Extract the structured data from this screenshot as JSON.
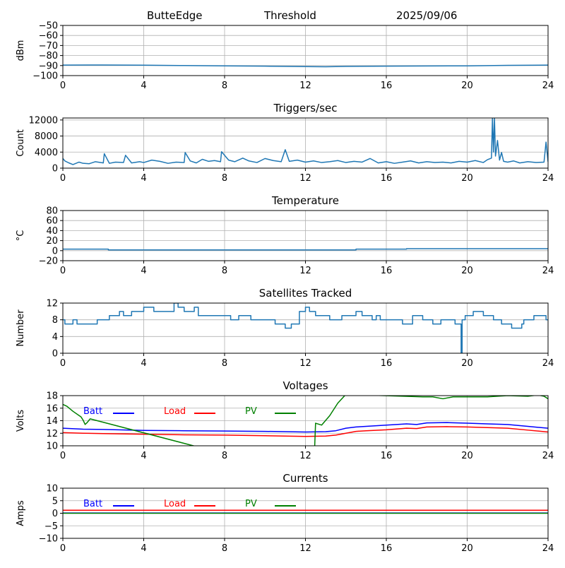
{
  "header": {
    "station": "ButteEdge",
    "mode": "Threshold",
    "date": "2025/09/06"
  },
  "colors": {
    "series": "#1f77b4",
    "grid": "#b0b0b0",
    "batt": "#0000ff",
    "load": "#ff0000",
    "pv": "#008000"
  },
  "chart_data": [
    {
      "type": "line",
      "title": "",
      "ylabel": "dBm",
      "xlim": [
        0,
        24
      ],
      "ylim": [
        -100,
        -50
      ],
      "xticks": [
        0,
        4,
        8,
        12,
        16,
        20,
        24
      ],
      "yticks": [
        -100,
        -90,
        -80,
        -70,
        -60,
        -50
      ],
      "series": [
        {
          "x": [
            0,
            2,
            4,
            6,
            8,
            10,
            12,
            13,
            14,
            16,
            18,
            20,
            22,
            24
          ],
          "y": [
            -89.5,
            -89.4,
            -89.6,
            -90.0,
            -90.3,
            -90.6,
            -91.0,
            -91.2,
            -90.8,
            -90.6,
            -90.4,
            -90.3,
            -89.8,
            -89.5
          ]
        }
      ]
    },
    {
      "type": "line",
      "title": "Triggers/sec",
      "ylabel": "Count",
      "xlim": [
        0,
        24
      ],
      "ylim": [
        0,
        12500
      ],
      "xticks": [
        0,
        4,
        8,
        12,
        16,
        20,
        24
      ],
      "yticks": [
        0,
        4000,
        8000,
        12000
      ],
      "series": [
        {
          "x": [
            0,
            0.1,
            0.3,
            0.5,
            0.8,
            1.0,
            1.3,
            1.6,
            2.0,
            2.05,
            2.3,
            2.6,
            3.0,
            3.1,
            3.4,
            3.8,
            4.0,
            4.4,
            4.8,
            5.2,
            5.6,
            6.0,
            6.05,
            6.3,
            6.6,
            6.9,
            7.2,
            7.5,
            7.8,
            7.85,
            8.2,
            8.5,
            8.9,
            9.2,
            9.6,
            10.0,
            10.4,
            10.8,
            11.0,
            11.2,
            11.6,
            12.0,
            12.4,
            12.8,
            13.2,
            13.6,
            14.0,
            14.4,
            14.8,
            15.2,
            15.6,
            16.0,
            16.4,
            16.8,
            17.2,
            17.6,
            18.0,
            18.4,
            18.8,
            19.2,
            19.6,
            20.0,
            20.4,
            20.8,
            21.0,
            21.2,
            21.25,
            21.3,
            21.35,
            21.4,
            21.5,
            21.6,
            21.7,
            21.8,
            22.0,
            22.3,
            22.6,
            23.0,
            23.4,
            23.8,
            23.9,
            24.0
          ],
          "y": [
            2400,
            1800,
            1300,
            900,
            1500,
            1200,
            1100,
            1600,
            1300,
            3600,
            1200,
            1500,
            1400,
            3200,
            1300,
            1600,
            1400,
            2000,
            1700,
            1200,
            1500,
            1400,
            3900,
            1800,
            1300,
            2200,
            1700,
            1900,
            1600,
            4100,
            2000,
            1600,
            2500,
            1800,
            1400,
            2400,
            1900,
            1600,
            4600,
            1700,
            2000,
            1500,
            1800,
            1400,
            1600,
            1900,
            1400,
            1700,
            1500,
            2400,
            1300,
            1600,
            1200,
            1500,
            1800,
            1300,
            1600,
            1400,
            1500,
            1300,
            1700,
            1500,
            1900,
            1400,
            2100,
            2500,
            12500,
            4000,
            12500,
            3000,
            6900,
            2000,
            3900,
            1700,
            1500,
            1800,
            1300,
            1600,
            1400,
            1500,
            6500,
            1600
          ]
        }
      ]
    },
    {
      "type": "line",
      "title": "Temperature",
      "ylabel": "°C",
      "xlim": [
        0,
        24
      ],
      "ylim": [
        -20,
        80
      ],
      "xticks": [
        0,
        4,
        8,
        12,
        16,
        20,
        24
      ],
      "yticks": [
        -20,
        0,
        20,
        40,
        60,
        80
      ],
      "series": [
        {
          "x": [
            0,
            2.25,
            2.25,
            14.5,
            14.5,
            17,
            17,
            24
          ],
          "y": [
            3,
            3,
            1.5,
            1.5,
            3,
            3,
            4,
            4
          ]
        }
      ]
    },
    {
      "type": "line",
      "title": "Satellites Tracked",
      "ylabel": "Number",
      "xlim": [
        0,
        24
      ],
      "ylim": [
        0,
        12
      ],
      "xticks": [
        0,
        4,
        8,
        12,
        16,
        20,
        24
      ],
      "yticks": [
        0,
        4,
        8,
        12
      ],
      "series": [
        {
          "x": [
            0,
            0.1,
            0.1,
            0.5,
            0.5,
            0.7,
            0.7,
            1.7,
            1.7,
            2.3,
            2.3,
            2.8,
            2.8,
            3.0,
            3.0,
            3.4,
            3.4,
            3.6,
            3.6,
            4.0,
            4.0,
            4.5,
            4.5,
            5.5,
            5.5,
            5.7,
            5.7,
            6.0,
            6.0,
            6.5,
            6.5,
            6.7,
            6.7,
            8.3,
            8.3,
            8.7,
            8.7,
            9.3,
            9.3,
            10.0,
            10.0,
            10.5,
            10.5,
            11.0,
            11.0,
            11.3,
            11.3,
            11.7,
            11.7,
            12.0,
            12.0,
            12.2,
            12.2,
            12.5,
            12.5,
            13.2,
            13.2,
            13.8,
            13.8,
            14.5,
            14.5,
            14.8,
            14.8,
            15.3,
            15.3,
            15.5,
            15.5,
            15.7,
            15.7,
            16.0,
            16.0,
            16.8,
            16.8,
            17.3,
            17.3,
            17.8,
            17.8,
            18.3,
            18.3,
            18.7,
            18.7,
            19.4,
            19.4,
            19.7,
            19.7,
            19.75,
            19.75,
            19.9,
            19.9,
            20.3,
            20.3,
            20.8,
            20.8,
            21.3,
            21.3,
            21.7,
            21.7,
            22.2,
            22.2,
            22.7,
            22.7,
            22.8,
            22.8,
            23.3,
            23.3,
            23.9,
            23.9,
            24.0
          ],
          "y": [
            8,
            8,
            7,
            7,
            8,
            8,
            7,
            7,
            8,
            8,
            9,
            9,
            10,
            10,
            9,
            9,
            10,
            10,
            10,
            10,
            11,
            11,
            10,
            10,
            12,
            12,
            11,
            11,
            10,
            10,
            11,
            11,
            9,
            9,
            8,
            8,
            9,
            9,
            8,
            8,
            8,
            8,
            7,
            7,
            6,
            6,
            7,
            7,
            10,
            10,
            11,
            11,
            10,
            10,
            9,
            9,
            8,
            8,
            9,
            9,
            10,
            10,
            9,
            9,
            8,
            8,
            9,
            9,
            8,
            8,
            8,
            8,
            7,
            7,
            9,
            9,
            8,
            8,
            7,
            7,
            8,
            8,
            7,
            7,
            0,
            0,
            8,
            8,
            9,
            9,
            10,
            10,
            9,
            9,
            8,
            8,
            7,
            7,
            6,
            6,
            7,
            7,
            8,
            8,
            9,
            9,
            8,
            8
          ]
        }
      ]
    },
    {
      "type": "line",
      "title": "Voltages",
      "ylabel": "Volts",
      "xlim": [
        0,
        24
      ],
      "ylim": [
        10,
        18
      ],
      "xticks": [
        0,
        4,
        8,
        12,
        16,
        20,
        24
      ],
      "yticks": [
        10,
        12,
        14,
        16,
        18
      ],
      "legend": "top-left",
      "series": [
        {
          "name": "Batt",
          "color": "#0000ff",
          "x": [
            0,
            1,
            2,
            4,
            6,
            8,
            10,
            12,
            13,
            13.5,
            14,
            14.5,
            15,
            16,
            17,
            17.5,
            18,
            19,
            20,
            21,
            22,
            23,
            24
          ],
          "y": [
            12.8,
            12.65,
            12.6,
            12.45,
            12.4,
            12.35,
            12.3,
            12.2,
            12.25,
            12.4,
            12.8,
            13.0,
            13.1,
            13.3,
            13.5,
            13.4,
            13.65,
            13.7,
            13.6,
            13.5,
            13.4,
            13.1,
            12.8
          ]
        },
        {
          "name": "Load",
          "color": "#ff0000",
          "x": [
            0,
            1,
            2,
            4,
            6,
            8,
            10,
            12,
            13,
            13.5,
            14,
            14.5,
            15,
            16,
            17,
            17.5,
            18,
            19,
            20,
            21,
            22,
            23,
            24
          ],
          "y": [
            12.1,
            12.0,
            11.95,
            11.85,
            11.75,
            11.7,
            11.6,
            11.5,
            11.55,
            11.7,
            12.0,
            12.3,
            12.4,
            12.55,
            12.8,
            12.75,
            13.0,
            13.05,
            13.0,
            12.9,
            12.8,
            12.5,
            12.2
          ]
        },
        {
          "name": "PV",
          "color": "#008000",
          "x": [
            0,
            0.2,
            0.5,
            0.9,
            1.0,
            1.1,
            1.2,
            1.35,
            12.4,
            12.5,
            12.8,
            13.2,
            13.6,
            14.0,
            17.8,
            18.3,
            18.8,
            19.3,
            20.0,
            21.0,
            22.0,
            23.0,
            23.5,
            23.8,
            24.0
          ],
          "y": [
            16.6,
            16.3,
            15.5,
            14.6,
            14.1,
            13.4,
            13.7,
            14.3,
            5.0,
            13.6,
            13.3,
            14.8,
            16.8,
            18.2,
            17.8,
            17.8,
            17.5,
            17.8,
            17.8,
            17.8,
            18.0,
            17.9,
            18.1,
            17.9,
            17.5
          ]
        }
      ]
    },
    {
      "type": "line",
      "title": "Currents",
      "ylabel": "Amps",
      "xlim": [
        0,
        24
      ],
      "ylim": [
        -10,
        10
      ],
      "xticks": [
        0,
        4,
        8,
        12,
        16,
        20,
        24
      ],
      "yticks": [
        -10,
        -5,
        0,
        5,
        10
      ],
      "legend": "top-left",
      "series": [
        {
          "name": "Batt",
          "color": "#0000ff",
          "x": [
            0,
            24
          ],
          "y": [
            0.1,
            0.1
          ]
        },
        {
          "name": "Load",
          "color": "#ff0000",
          "x": [
            0,
            24
          ],
          "y": [
            1.2,
            1.2
          ]
        },
        {
          "name": "PV",
          "color": "#008000",
          "x": [
            0,
            24
          ],
          "y": [
            0.0,
            0.0
          ]
        }
      ]
    }
  ]
}
